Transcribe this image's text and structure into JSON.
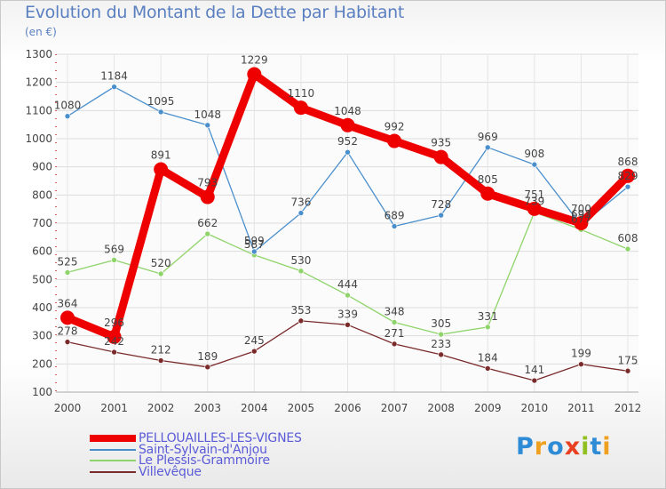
{
  "chart_data": {
    "type": "line",
    "title": "Evolution du Montant de la Dette par Habitant",
    "subtitle": "(en €)",
    "categories": [
      "2000",
      "2001",
      "2002",
      "2003",
      "2004",
      "2005",
      "2006",
      "2007",
      "2008",
      "2009",
      "2010",
      "2011",
      "2012"
    ],
    "ylim": [
      100,
      1300
    ],
    "yticks": [
      100,
      200,
      300,
      400,
      500,
      600,
      700,
      800,
      900,
      1000,
      1100,
      1200,
      1300
    ],
    "grid": true,
    "legend_position": "bottom-left",
    "series": [
      {
        "name": "PELLOUAILLES-LES-VIGNES",
        "color": "#ee0000",
        "values": [
          364,
          296,
          891,
          793,
          1229,
          1110,
          1048,
          992,
          935,
          805,
          751,
          700,
          868
        ]
      },
      {
        "name": "Saint-Sylvain-d'Anjou",
        "color": "#4a8fcc",
        "values": [
          1080,
          1184,
          1095,
          1048,
          599,
          736,
          952,
          689,
          728,
          969,
          908,
          693,
          829
        ]
      },
      {
        "name": "Le Plessis-Grammoire",
        "color": "#8fd46a",
        "values": [
          525,
          569,
          520,
          662,
          587,
          530,
          444,
          348,
          305,
          331,
          739,
          677,
          608
        ]
      },
      {
        "name": "Villevêque",
        "color": "#7a2a2a",
        "values": [
          278,
          242,
          212,
          189,
          245,
          353,
          339,
          271,
          233,
          184,
          141,
          199,
          175
        ]
      }
    ]
  },
  "logo": {
    "letters": [
      "P",
      "r",
      "o",
      "x",
      "i",
      "t",
      "i"
    ],
    "colors": [
      "#2e8bd6",
      "#f0a020",
      "#2e8bd6",
      "#e84020",
      "#90c020",
      "#2e8bd6",
      "#f0a020"
    ]
  }
}
